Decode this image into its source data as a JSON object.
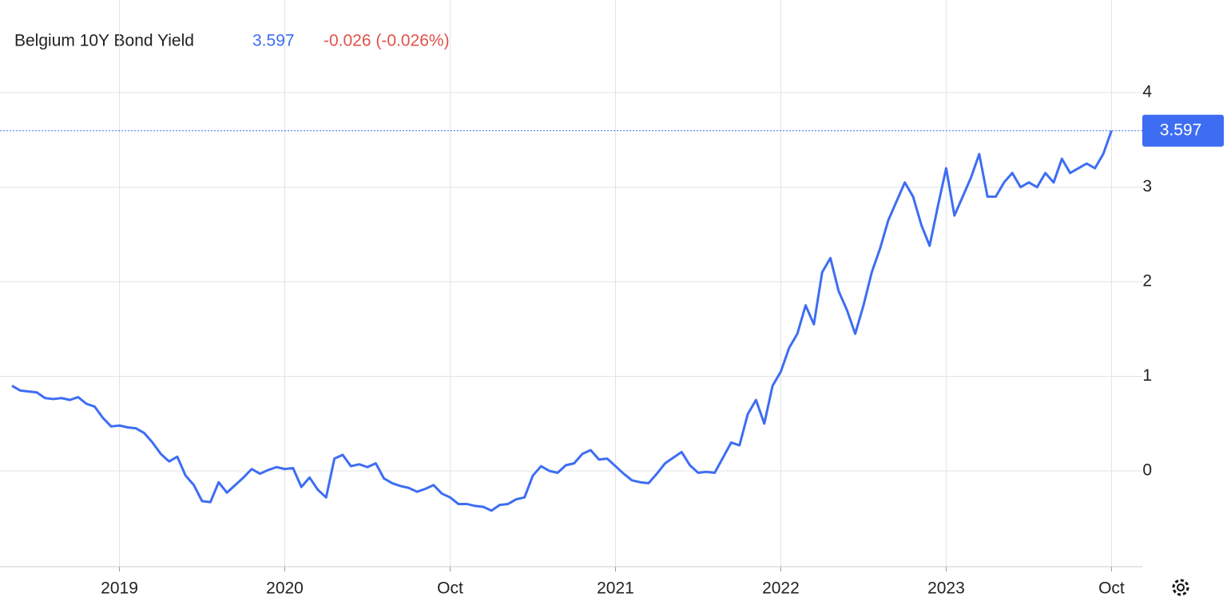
{
  "chart_data": {
    "type": "line",
    "title": "Belgium 10Y Bond Yield",
    "last_value": 3.597,
    "change_label": "-0.026 (-0.026%)",
    "x": [
      0,
      1,
      2,
      3,
      4,
      5,
      6,
      7,
      8,
      9,
      10,
      11,
      12,
      13,
      14,
      15,
      16,
      17,
      18,
      19,
      20,
      21,
      22,
      23,
      24,
      25,
      26,
      27,
      28,
      29,
      30,
      31,
      32,
      33,
      34,
      35,
      36,
      37,
      38,
      39,
      40,
      41,
      42,
      43,
      44,
      45,
      46,
      47,
      48,
      49,
      50,
      51,
      52,
      53,
      54,
      55,
      56,
      57,
      58,
      59,
      60,
      61,
      62,
      63,
      64,
      65,
      66,
      67,
      68,
      69,
      70,
      71,
      72,
      73,
      74,
      75,
      76,
      77,
      78,
      79,
      80,
      81,
      82,
      83,
      84,
      85,
      86,
      87,
      88,
      89,
      90,
      91,
      92,
      93,
      94,
      95,
      96,
      97,
      98,
      99,
      100,
      101,
      102,
      103,
      104,
      105,
      106,
      107,
      108,
      109,
      110,
      111,
      112,
      113,
      114,
      115,
      116,
      117,
      118,
      119,
      120,
      121,
      122,
      123,
      124,
      125,
      126,
      127,
      128,
      129,
      130,
      131,
      132,
      133
    ],
    "series": [
      {
        "name": "Belgium 10Y Bond Yield",
        "color": "#3d6df2",
        "values": [
          0.9,
          0.85,
          0.84,
          0.83,
          0.77,
          0.76,
          0.77,
          0.75,
          0.78,
          0.71,
          0.68,
          0.56,
          0.47,
          0.48,
          0.46,
          0.45,
          0.4,
          0.3,
          0.18,
          0.1,
          0.15,
          -0.05,
          -0.15,
          -0.32,
          -0.33,
          -0.12,
          -0.23,
          -0.15,
          -0.07,
          0.02,
          -0.03,
          0.01,
          0.04,
          0.02,
          0.03,
          -0.17,
          -0.07,
          -0.2,
          -0.28,
          0.13,
          0.17,
          0.05,
          0.07,
          0.04,
          0.08,
          -0.08,
          -0.13,
          -0.16,
          -0.18,
          -0.22,
          -0.19,
          -0.15,
          -0.24,
          -0.28,
          -0.35,
          -0.35,
          -0.37,
          -0.38,
          -0.42,
          -0.36,
          -0.35,
          -0.3,
          -0.28,
          -0.05,
          0.05,
          0.0,
          -0.02,
          0.06,
          0.08,
          0.18,
          0.22,
          0.12,
          0.13,
          0.05,
          -0.03,
          -0.1,
          -0.12,
          -0.13,
          -0.03,
          0.08,
          0.14,
          0.2,
          0.06,
          -0.02,
          -0.01,
          -0.02,
          0.14,
          0.3,
          0.27,
          0.6,
          0.75,
          0.5,
          0.9,
          1.05,
          1.3,
          1.45,
          1.75,
          1.55,
          2.1,
          2.25,
          1.9,
          1.7,
          1.45,
          1.75,
          2.1,
          2.35,
          2.65,
          2.85,
          3.05,
          2.9,
          2.6,
          2.38,
          2.8,
          3.2,
          2.7,
          2.9,
          3.1,
          3.35,
          2.9,
          2.9,
          3.05,
          3.15,
          3.0,
          3.05,
          3.0,
          3.15,
          3.05,
          3.3,
          3.15,
          3.2,
          3.25,
          3.2,
          3.35,
          3.597
        ]
      }
    ],
    "xlim": [
      0,
      137
    ],
    "xticks": [
      {
        "value": 13,
        "label": "2019"
      },
      {
        "value": 33,
        "label": "2020"
      },
      {
        "value": 53,
        "label": "Oct"
      },
      {
        "value": 73,
        "label": "2021"
      },
      {
        "value": 93,
        "label": "2022"
      },
      {
        "value": 113,
        "label": "2023"
      },
      {
        "value": 133,
        "label": "Oct"
      }
    ],
    "ylim": [
      -1,
      5
    ],
    "yticks": [
      0,
      1,
      2,
      3,
      4
    ],
    "grid": true
  }
}
